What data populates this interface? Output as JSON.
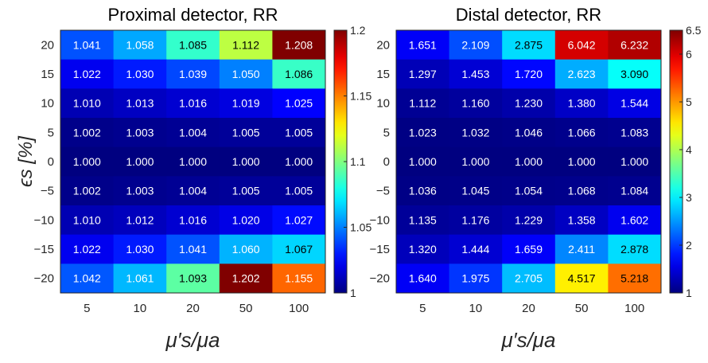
{
  "chart_data": [
    {
      "type": "heatmap",
      "title": "Proximal detector, RR",
      "xlabel": "μ′s/μa",
      "ylabel": "ϵs [%]",
      "x_categories": [
        "5",
        "10",
        "20",
        "50",
        "100"
      ],
      "y_categories": [
        "20",
        "15",
        "10",
        "5",
        "0",
        "−5",
        "−10",
        "−15",
        "−20"
      ],
      "values": [
        [
          1.041,
          1.058,
          1.085,
          1.112,
          1.208
        ],
        [
          1.022,
          1.03,
          1.039,
          1.05,
          1.086
        ],
        [
          1.01,
          1.013,
          1.016,
          1.019,
          1.025
        ],
        [
          1.002,
          1.003,
          1.004,
          1.005,
          1.005
        ],
        [
          1.0,
          1.0,
          1.0,
          1.0,
          1.0
        ],
        [
          1.002,
          1.003,
          1.004,
          1.005,
          1.005
        ],
        [
          1.01,
          1.012,
          1.016,
          1.02,
          1.027
        ],
        [
          1.022,
          1.03,
          1.041,
          1.06,
          1.067
        ],
        [
          1.042,
          1.061,
          1.093,
          1.202,
          1.155
        ]
      ],
      "colorbar": {
        "range": [
          1,
          1.2
        ],
        "ticks": [
          1,
          1.05,
          1.1,
          1.15,
          1.2
        ]
      },
      "colormap": "jet"
    },
    {
      "type": "heatmap",
      "title": "Distal detector, RR",
      "xlabel": "μ′s/μa",
      "ylabel": "",
      "x_categories": [
        "5",
        "10",
        "20",
        "50",
        "100"
      ],
      "y_categories": [
        "20",
        "15",
        "10",
        "5",
        "0",
        "−5",
        "−10",
        "−15",
        "−20"
      ],
      "values": [
        [
          1.651,
          2.109,
          2.875,
          6.042,
          6.232
        ],
        [
          1.297,
          1.453,
          1.72,
          2.623,
          3.09
        ],
        [
          1.112,
          1.16,
          1.23,
          1.38,
          1.544
        ],
        [
          1.023,
          1.032,
          1.046,
          1.066,
          1.083
        ],
        [
          1.0,
          1.0,
          1.0,
          1.0,
          1.0
        ],
        [
          1.036,
          1.045,
          1.054,
          1.068,
          1.084
        ],
        [
          1.135,
          1.176,
          1.229,
          1.358,
          1.602
        ],
        [
          1.32,
          1.444,
          1.659,
          2.411,
          2.878
        ],
        [
          1.64,
          1.975,
          2.705,
          4.517,
          5.218
        ]
      ],
      "colorbar": {
        "range": [
          1,
          6.5
        ],
        "ticks": [
          1,
          2,
          3,
          4,
          5,
          6,
          6.5
        ]
      },
      "colormap": "jet"
    }
  ]
}
